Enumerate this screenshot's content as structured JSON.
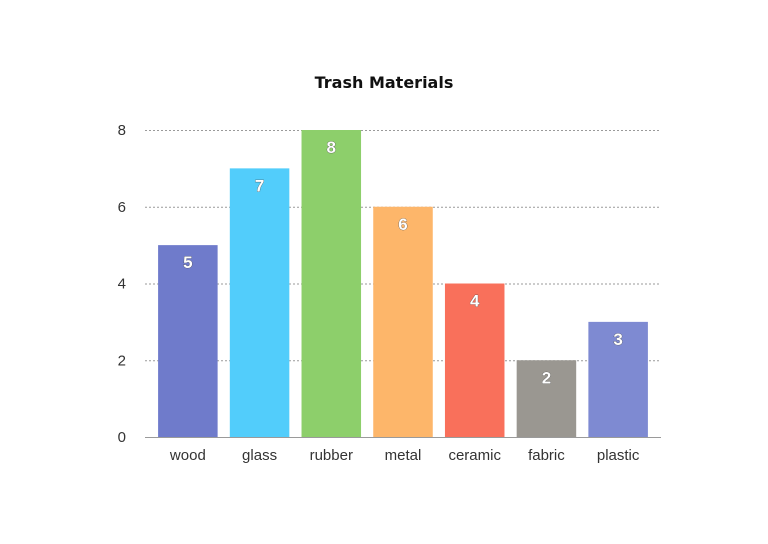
{
  "chart_data": {
    "type": "bar",
    "title": "Trash Materials",
    "xlabel": "",
    "ylabel": "",
    "categories": [
      "wood",
      "glass",
      "rubber",
      "metal",
      "ceramic",
      "fabric",
      "plastic"
    ],
    "values": [
      5,
      7,
      8,
      6,
      4,
      2,
      3
    ],
    "colors": [
      "#6f7bcb",
      "#52cdfb",
      "#8dcf6b",
      "#fdb66a",
      "#f9705b",
      "#9a9791",
      "#7e8ad2"
    ],
    "ylim": [
      0,
      8
    ],
    "yticks": [
      0,
      2,
      4,
      6,
      8
    ],
    "grid": true,
    "data_labels": true,
    "legend": "none"
  }
}
